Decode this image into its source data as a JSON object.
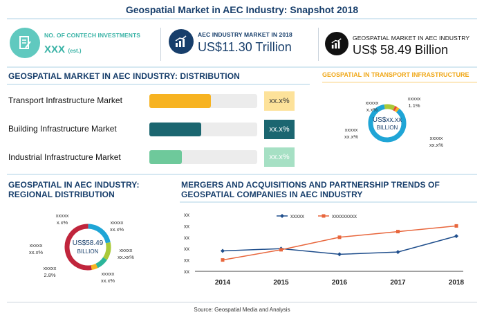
{
  "title": "Geospatial Market in AEC Industry: Snapshot 2018",
  "colors": {
    "teal_light": "#60c9bf",
    "navy": "#173e6b",
    "orange": "#f7b321",
    "dark_teal": "#1b6670",
    "green": "#6ec99b",
    "donut_blue": "#1fa5d6",
    "red": "#e8473a",
    "crimson": "#c0253c",
    "lime": "#a9c939"
  },
  "kpis": [
    {
      "label": "NO. OF CONTECH INVESTMENTS",
      "value": "XXX",
      "suffix": "(est.)",
      "icon": "document-edit-icon"
    },
    {
      "label": "AEC INDUSTRY MARKET IN 2018",
      "value": "US$11.30 Trillion",
      "icon": "bar-chart-growth-icon"
    },
    {
      "label": "GEOSPATIAL  MARKET  IN  AEC INDUSTRY",
      "value": "US$ 58.49 Billion",
      "icon": "bar-chart-growth-icon"
    }
  ],
  "distribution": {
    "title": "GEOSPATIAL MARKET IN AEC INDUSTRY: DISTRIBUTION",
    "rows": [
      {
        "label": "Transport Infrastructure Market",
        "pct_text": "xx.x%",
        "fill": 0.57
      },
      {
        "label": "Building Infrastructure Market",
        "pct_text": "xx.x%",
        "fill": 0.48
      },
      {
        "label": "Industrial Infrastructure Market",
        "pct_text": "xx.x%",
        "fill": 0.3
      }
    ]
  },
  "transport": {
    "title": "GEOSPATIAL IN TRANSPORT INFRASTRUCTURE",
    "center_line1": "US$xx.xx",
    "center_line2": "BILLION",
    "labels": [
      {
        "line1": "xxxxx",
        "line2": "1.1%"
      },
      {
        "line1": "xxxxx",
        "line2": "x.x%"
      },
      {
        "line1": "xxxxx",
        "line2": "xx.x%"
      },
      {
        "line1": "xxxxx",
        "line2": "xx.x%"
      }
    ]
  },
  "regional": {
    "title_line1": "GEOSPATIAL IN AEC INDUSTRY:",
    "title_line2": "REGIONAL DISTRIBUTION",
    "center_line1": "US$58.49",
    "center_line2": "BILLION",
    "labels": [
      {
        "line1": "xxxxx",
        "line2": "x.x%"
      },
      {
        "line1": "xxxxx",
        "line2": "xx.x%"
      },
      {
        "line1": "xxxxx",
        "line2": "xx.xx%"
      },
      {
        "line1": "xxxxx",
        "line2": "xx.x%"
      },
      {
        "line1": "xxxxx",
        "line2": "2.8%"
      },
      {
        "line1": "xxxxx",
        "line2": "xx.x%"
      }
    ]
  },
  "source": "Source: Geospatial Media and Analysis",
  "chart_data": {
    "type": "line",
    "title": "MERGERS AND ACQUISITIONS AND PARTNERSHIP TRENDS OF GEOSPATIAL COMPANIES IN AEC INDUSTRY",
    "title_line1": "MERGERS AND ACQUISITIONS AND PARTNERSHIP TRENDS OF",
    "title_line2": "GEOSPATIAL COMPANIES IN AEC INDUSTRY",
    "categories": [
      "2014",
      "2015",
      "2016",
      "2017",
      "2018"
    ],
    "y_tick_labels": [
      "xx",
      "xx",
      "xx",
      "xx",
      "xx",
      "xx"
    ],
    "ylim": [
      0,
      5
    ],
    "series": [
      {
        "name": "xxxxx",
        "values": [
          1.8,
          2.0,
          1.5,
          1.7,
          3.1
        ],
        "color": "#1f4e8c",
        "marker": "diamond"
      },
      {
        "name": "xxxxxxxxx",
        "values": [
          1.0,
          1.9,
          3.0,
          3.5,
          4.0
        ],
        "color": "#e8663c",
        "marker": "square"
      }
    ],
    "legend": "top-left",
    "grid": false
  }
}
